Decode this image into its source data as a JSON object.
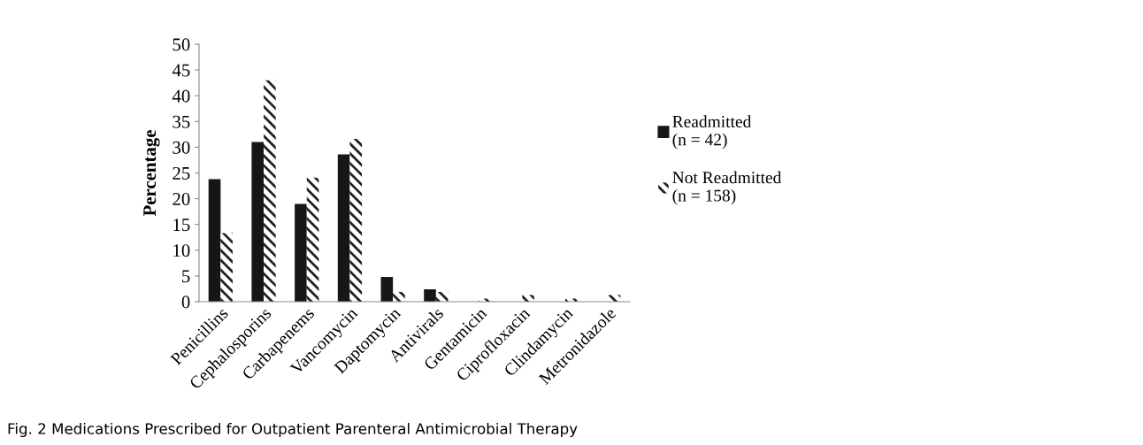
{
  "chart_data": {
    "type": "bar",
    "ylabel": "Percentage",
    "categories": [
      "Penicillins",
      "Cephalosporins",
      "Carbapenems",
      "Vancomycin",
      "Daptomycin",
      "Antivirals",
      "Gentamicin",
      "Ciprofloxacin",
      "Clindamycin",
      "Metronidazole"
    ],
    "series": [
      {
        "name": "Readmitted\n(n = 42)",
        "color": "#161616",
        "values": [
          23.8,
          31.0,
          19.0,
          28.6,
          4.8,
          2.4,
          0,
          0,
          0,
          0
        ]
      },
      {
        "name": "Not Readmitted\n(n = 158)",
        "color": "#222222",
        "values": [
          13.3,
          43.0,
          24.1,
          31.6,
          1.9,
          1.9,
          0.6,
          1.3,
          0.6,
          1.3
        ]
      }
    ],
    "ylim": [
      0,
      50
    ],
    "yticks": [
      0,
      5,
      10,
      15,
      20,
      25,
      30,
      35,
      40,
      45,
      50
    ],
    "grid": false,
    "legend": "right",
    "annotations": [
      "Fig. 2 Medications Prescribed for Outpatient Parenteral Antimicrobial Therapy"
    ]
  }
}
